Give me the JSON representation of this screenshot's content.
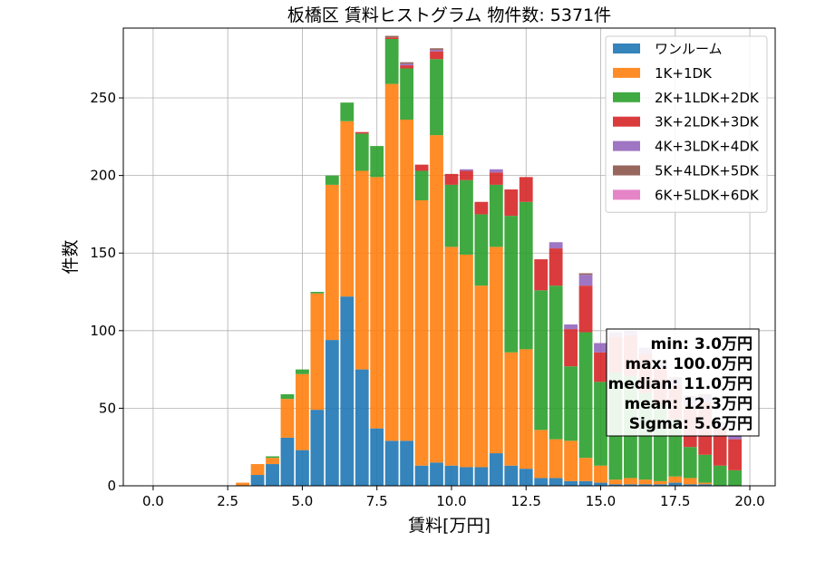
{
  "chart_data": {
    "type": "bar",
    "stacked": true,
    "title": "板橋区 賃料ヒストグラム 物件数: 5371件",
    "xlabel": "賃料[万円]",
    "ylabel": "件数",
    "xlim": [
      -1.0,
      20.85
    ],
    "ylim": [
      0,
      295
    ],
    "xticks": [
      0.0,
      2.5,
      5.0,
      7.5,
      10.0,
      12.5,
      15.0,
      17.5,
      20.0
    ],
    "xtick_labels": [
      "0.0",
      "2.5",
      "5.0",
      "7.5",
      "10.0",
      "12.5",
      "15.0",
      "17.5",
      "20.0"
    ],
    "yticks": [
      0,
      50,
      100,
      150,
      200,
      250
    ],
    "ytick_labels": [
      "0",
      "50",
      "100",
      "150",
      "200",
      "250"
    ],
    "grid": true,
    "legend_position": "top-right",
    "bin_width": 0.5,
    "x": [
      3.0,
      3.5,
      4.0,
      4.5,
      5.0,
      5.5,
      6.0,
      6.5,
      7.0,
      7.5,
      8.0,
      8.5,
      9.0,
      9.5,
      10.0,
      10.5,
      11.0,
      11.5,
      12.0,
      12.5,
      13.0,
      13.5,
      14.0,
      14.5,
      15.0,
      15.5,
      16.0,
      16.5,
      17.0,
      17.5,
      18.0,
      18.5,
      19.0,
      19.5
    ],
    "series": [
      {
        "name": "ワンルーム",
        "color": "#1f77b4",
        "values": [
          0,
          7,
          14,
          31,
          23,
          49,
          94,
          122,
          75,
          37,
          29,
          29,
          13,
          15,
          13,
          12,
          12,
          21,
          13,
          11,
          5,
          5,
          3,
          3,
          2,
          1,
          1,
          1,
          1,
          2,
          1,
          1,
          0,
          0
        ]
      },
      {
        "name": "1K+1DK",
        "color": "#ff7f0e",
        "values": [
          2,
          7,
          4,
          25,
          49,
          75,
          100,
          113,
          128,
          162,
          230,
          207,
          171,
          211,
          141,
          137,
          117,
          133,
          73,
          77,
          31,
          25,
          26,
          15,
          11,
          3,
          4,
          3,
          2,
          4,
          4,
          1,
          0,
          0
        ]
      },
      {
        "name": "2K+1LDK+2DK",
        "color": "#2ca02c",
        "values": [
          0,
          0,
          1,
          3,
          3,
          1,
          6,
          12,
          24,
          20,
          29,
          33,
          19,
          49,
          40,
          48,
          46,
          40,
          88,
          95,
          90,
          99,
          48,
          81,
          54,
          69,
          66,
          56,
          49,
          37,
          20,
          18,
          13,
          10
        ]
      },
      {
        "name": "3K+2LDK+3DK",
        "color": "#d62728",
        "values": [
          0,
          0,
          0,
          0,
          0,
          0,
          0,
          0,
          1,
          0,
          1,
          2,
          4,
          5,
          7,
          6,
          8,
          8,
          17,
          16,
          20,
          24,
          24,
          30,
          19,
          23,
          26,
          25,
          24,
          22,
          27,
          34,
          24,
          20
        ]
      },
      {
        "name": "4K+3LDK+4DK",
        "color": "#9467bd",
        "values": [
          0,
          0,
          0,
          0,
          0,
          0,
          0,
          0,
          0,
          0,
          0,
          1,
          0,
          1,
          0,
          1,
          0,
          2,
          0,
          0,
          0,
          4,
          3,
          7,
          6,
          3,
          3,
          4,
          3,
          4,
          5,
          4,
          3,
          3
        ]
      },
      {
        "name": "5K+4LDK+5DK",
        "color": "#8c564b",
        "values": [
          0,
          0,
          0,
          0,
          0,
          0,
          0,
          0,
          0,
          0,
          1,
          1,
          0,
          1,
          0,
          0,
          0,
          0,
          0,
          0,
          0,
          0,
          0,
          1,
          0,
          0,
          0,
          0,
          1,
          1,
          1,
          1,
          1,
          0
        ]
      },
      {
        "name": "6K+5LDK+6DK",
        "color": "#e377c2",
        "values": [
          0,
          0,
          0,
          0,
          0,
          0,
          0,
          0,
          0,
          0,
          0,
          0,
          0,
          0,
          0,
          0,
          0,
          0,
          0,
          0,
          0,
          0,
          0,
          0,
          0,
          0,
          0,
          0,
          0,
          0,
          0,
          0,
          0,
          0
        ]
      }
    ],
    "stats_box": [
      "min: 3.0万円",
      "max: 100.0万円",
      "median: 11.0万円",
      "mean: 12.3万円",
      "Sigma: 5.6万円"
    ]
  },
  "colors": {
    "grid": "#b0b0b0",
    "axes": "#000000",
    "background": "#ffffff"
  }
}
